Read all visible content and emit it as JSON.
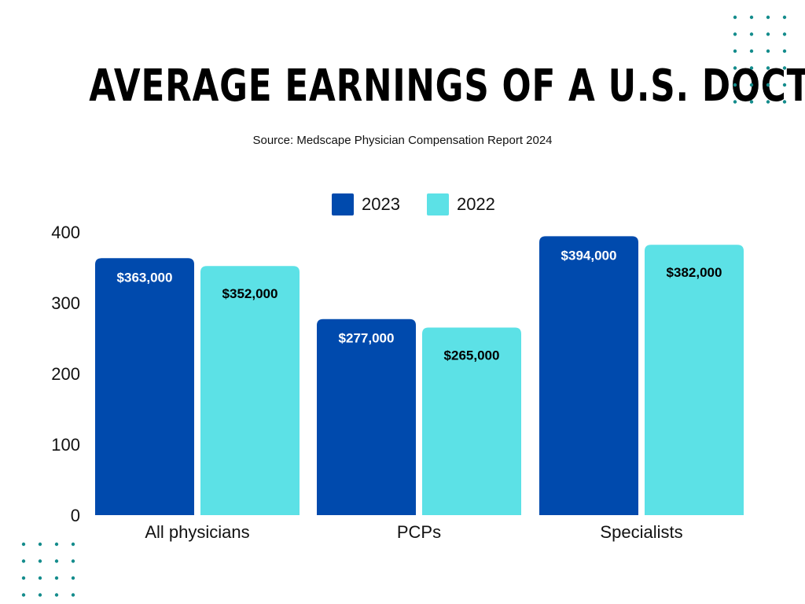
{
  "title": "AVERAGE EARNINGS OF A U.S. DOCTOR",
  "subtitle": "Source: Medscape Physician Compensation Report 2024",
  "colors": {
    "series_2023": "#004AAD",
    "series_2022": "#5CE1E6",
    "dots": "#148C8C"
  },
  "chart_data": {
    "type": "bar",
    "title": "AVERAGE EARNINGS OF A U.S. DOCTOR",
    "xlabel": "",
    "ylabel": "",
    "ylim": [
      0,
      400
    ],
    "yticks": [
      "0",
      "100",
      "200",
      "300",
      "400"
    ],
    "ytick_values": [
      0,
      100,
      200,
      300,
      400
    ],
    "grid": false,
    "legend_position": "top-center",
    "categories": [
      "All physicians",
      "PCPs",
      "Specialists"
    ],
    "series": [
      {
        "name": "2023",
        "values": [
          363,
          277,
          394
        ],
        "labels": [
          "$363,000",
          "$277,000",
          "$394,000"
        ]
      },
      {
        "name": "2022",
        "values": [
          352,
          265,
          382
        ],
        "labels": [
          "$352,000",
          "$265,000",
          "$382,000"
        ]
      }
    ]
  }
}
